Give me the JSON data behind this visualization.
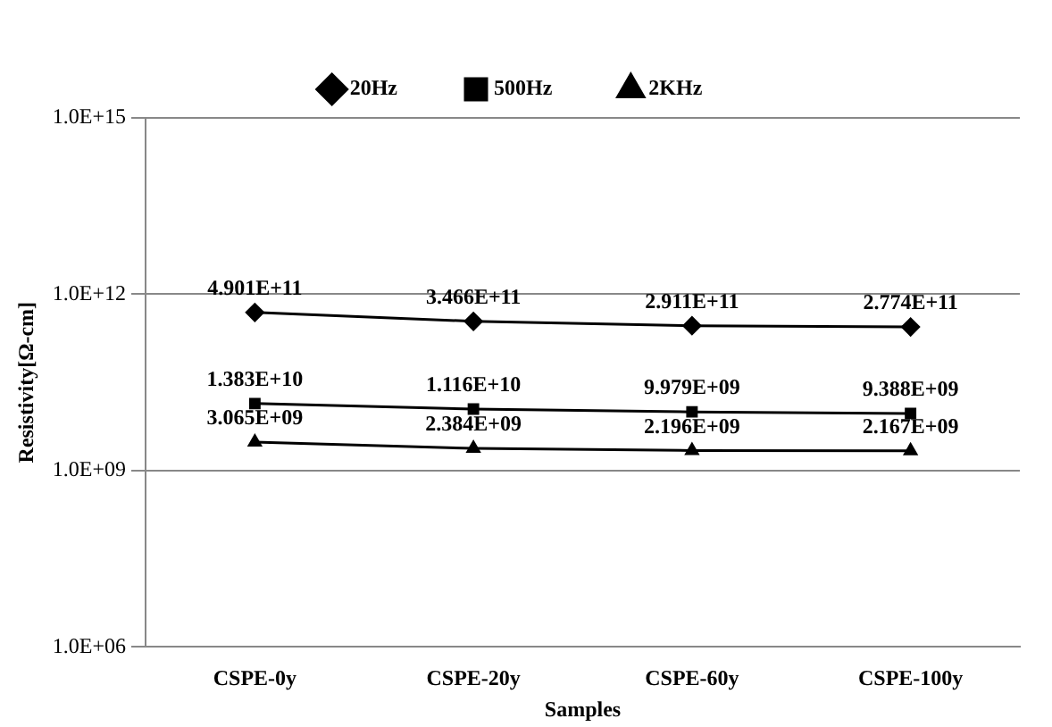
{
  "chart_data": {
    "type": "line",
    "xlabel": "Samples",
    "ylabel": "Resistivity[Ω-cm]",
    "categories": [
      "CSPE-0y",
      "CSPE-20y",
      "CSPE-60y",
      "CSPE-100y"
    ],
    "series": [
      {
        "name": "20Hz",
        "color": "#000000",
        "marker": "diamond",
        "values": [
          490100000000.0,
          346600000000.0,
          291100000000.0,
          277400000000.0
        ],
        "value_labels": [
          "4.901E+11",
          "3.466E+11",
          "2.911E+11",
          "2.774E+11"
        ]
      },
      {
        "name": "500Hz",
        "color": "#000000",
        "marker": "square",
        "values": [
          13830000000.0,
          11160000000.0,
          9979000000.0,
          9388000000.0
        ],
        "value_labels": [
          "1.383E+10",
          "1.116E+10",
          "9.979E+09",
          "9.388E+09"
        ]
      },
      {
        "name": "2KHz",
        "color": "#000000",
        "marker": "triangle",
        "values": [
          3065000000.0,
          2384000000.0,
          2196000000.0,
          2167000000.0
        ],
        "value_labels": [
          "3.065E+09",
          "2.384E+09",
          "2.196E+09",
          "2.167E+09"
        ]
      }
    ],
    "log": "y",
    "ylim": [
      1000000,
      1000000000000000
    ],
    "yticks": [
      {
        "value": 1000000,
        "label": "1.0E+06"
      },
      {
        "value": 1000000000,
        "label": "1.0E+09"
      },
      {
        "value": 1000000000000,
        "label": "1.0E+12"
      },
      {
        "value": 1000000000000000,
        "label": "1.0E+15"
      }
    ],
    "grid": "y",
    "legend": "top",
    "line_style": "solid"
  }
}
